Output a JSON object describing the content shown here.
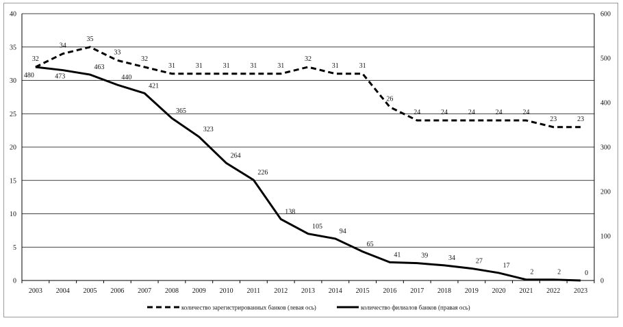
{
  "chart_data": {
    "type": "line",
    "title": "",
    "xlabel": "",
    "x": [
      "2003",
      "2004",
      "2005",
      "2006",
      "2007",
      "2008",
      "2009",
      "2010",
      "2011",
      "2012",
      "2013",
      "2014",
      "2015",
      "2016",
      "2017",
      "2018",
      "2019",
      "2020",
      "2021",
      "2022",
      "2023"
    ],
    "series": [
      {
        "name": "количество зарегистрированных банков (левая ось)",
        "axis": "left",
        "style": "dashed",
        "values": [
          32,
          34,
          35,
          33,
          32,
          31,
          31,
          31,
          31,
          31,
          32,
          31,
          31,
          26,
          24,
          24,
          24,
          24,
          24,
          23,
          23
        ]
      },
      {
        "name": "количество филиалов банков (правая ось)",
        "axis": "right",
        "style": "solid",
        "values": [
          480,
          473,
          463,
          440,
          421,
          365,
          323,
          264,
          226,
          138,
          105,
          94,
          65,
          41,
          39,
          34,
          27,
          17,
          2,
          2,
          0
        ]
      }
    ],
    "y_left": {
      "ylim": [
        0,
        40
      ],
      "ticks": [
        "0",
        "5",
        "10",
        "15",
        "20",
        "25",
        "30",
        "35",
        "40"
      ]
    },
    "y_right": {
      "ylim": [
        0,
        600
      ],
      "ticks": [
        "0",
        "100",
        "200",
        "300",
        "400",
        "500",
        "600"
      ]
    },
    "grid": "horizontal",
    "legend_position": "bottom",
    "colors": {
      "line": "#000000",
      "grid": "#000000",
      "frame": "#9a9a9a"
    }
  }
}
